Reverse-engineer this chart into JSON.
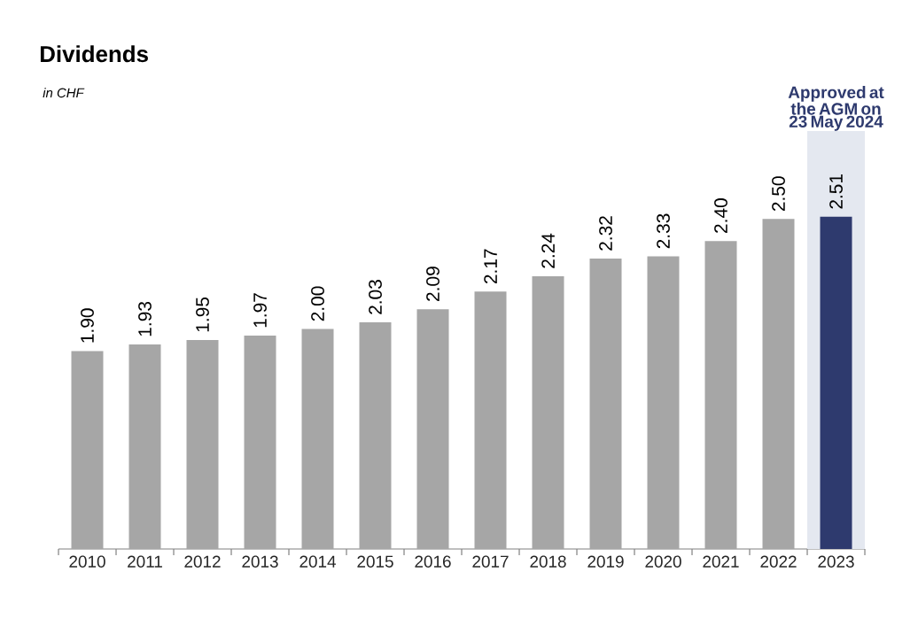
{
  "chart_data": {
    "type": "bar",
    "title": "Dividends",
    "subtitle": "in CHF",
    "categories": [
      "2010",
      "2011",
      "2012",
      "2013",
      "2014",
      "2015",
      "2016",
      "2017",
      "2018",
      "2019",
      "2020",
      "2021",
      "2022",
      "2023"
    ],
    "values": [
      1.9,
      1.93,
      1.95,
      1.97,
      2.0,
      2.03,
      2.09,
      2.17,
      2.24,
      2.32,
      2.33,
      2.4,
      2.5,
      2.51
    ],
    "value_labels": [
      "1.90",
      "1.93",
      "1.95",
      "1.97",
      "2.00",
      "2.03",
      "2.09",
      "2.17",
      "2.24",
      "2.32",
      "2.33",
      "2.40",
      "2.50",
      "2.51"
    ],
    "colors": [
      "#a6a6a6",
      "#a6a6a6",
      "#a6a6a6",
      "#a6a6a6",
      "#a6a6a6",
      "#a6a6a6",
      "#a6a6a6",
      "#a6a6a6",
      "#a6a6a6",
      "#a6a6a6",
      "#a6a6a6",
      "#a6a6a6",
      "#a6a6a6",
      "#2e3a6e"
    ],
    "ylim": [
      1.0,
      2.9
    ],
    "tick_labels": "x",
    "bands": [
      {
        "axis": "x",
        "from": "2023",
        "to": "2023",
        "label": "Approved at the AGM on 23 May 2024",
        "color": "#e4e8f0"
      }
    ]
  }
}
